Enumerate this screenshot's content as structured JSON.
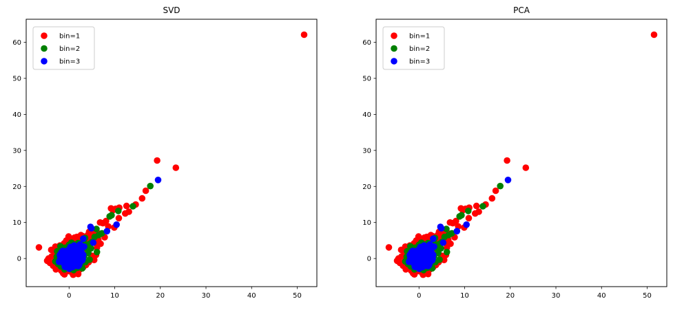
{
  "figure": {
    "background": "#ffffff",
    "legend_edge_color": "#cccccc",
    "legend_face_color": "#ffffff",
    "spine_color": "#000000",
    "text_color": "#000000"
  },
  "chart_data": {
    "type": "scatter",
    "grid": false,
    "identical_subplots": true,
    "subplots": [
      {
        "title": "SVD"
      },
      {
        "title": "PCA"
      }
    ],
    "xlabel": "",
    "ylabel": "",
    "xlim": [
      -9.4,
      54.3
    ],
    "ylim": [
      -7.8,
      66.4
    ],
    "xticks": [
      0,
      10,
      20,
      30,
      40,
      50
    ],
    "yticks": [
      0,
      10,
      20,
      30,
      40,
      50,
      60
    ],
    "legend": {
      "position": "upper left",
      "entries": [
        {
          "label": "bin=1",
          "color": "#ff0000"
        },
        {
          "label": "bin=2",
          "color": "#008000"
        },
        {
          "label": "bin=3",
          "color": "#0000ff"
        }
      ]
    },
    "series": [
      {
        "name": "bin=1",
        "color": "#ff0000",
        "points": [
          [
            51.5,
            62.1
          ],
          [
            -6.6,
            3.1
          ],
          [
            23.4,
            25.2
          ],
          [
            19.3,
            27.2
          ],
          [
            16.8,
            18.8
          ],
          [
            16.0,
            16.7
          ],
          [
            14.6,
            15.0
          ],
          [
            13.1,
            13.0
          ],
          [
            12.3,
            12.5
          ],
          [
            11.0,
            14.1
          ],
          [
            10.2,
            13.8
          ],
          [
            9.6,
            13.4
          ],
          [
            9.2,
            13.9
          ],
          [
            8.1,
            10.4
          ],
          [
            7.4,
            9.8
          ],
          [
            6.8,
            10.0
          ],
          [
            8.6,
            8.9
          ],
          [
            5.4,
            7.1
          ],
          [
            7.8,
            5.9
          ],
          [
            9.9,
            8.6
          ],
          [
            10.9,
            11.2
          ],
          [
            12.6,
            14.6
          ],
          [
            -4.2,
            -1.2
          ],
          [
            -3.8,
            0.6
          ],
          [
            -3.5,
            -2.0
          ],
          [
            -3.2,
            1.8
          ],
          [
            -2.9,
            -3.0
          ],
          [
            -2.6,
            2.8
          ],
          [
            -2.3,
            -0.6
          ],
          [
            -2.0,
            3.6
          ],
          [
            -1.7,
            -3.4
          ],
          [
            -1.4,
            1.0
          ],
          [
            -1.1,
            4.2
          ],
          [
            -0.8,
            -3.8
          ],
          [
            -0.5,
            2.2
          ],
          [
            -0.2,
            4.6
          ],
          [
            0.1,
            -3.5
          ],
          [
            0.4,
            3.0
          ],
          [
            0.7,
            -4.0
          ],
          [
            1.0,
            4.8
          ],
          [
            1.3,
            -3.0
          ],
          [
            1.6,
            4.1
          ],
          [
            1.9,
            -3.8
          ],
          [
            2.2,
            5.0
          ],
          [
            2.5,
            -2.9
          ],
          [
            2.8,
            4.4
          ],
          [
            3.1,
            -2.4
          ],
          [
            3.4,
            5.3
          ],
          [
            3.7,
            -1.8
          ],
          [
            4.0,
            4.9
          ],
          [
            4.3,
            -1.0
          ],
          [
            4.6,
            5.6
          ],
          [
            4.9,
            0.8
          ],
          [
            5.2,
            5.9
          ],
          [
            5.5,
            -0.4
          ],
          [
            5.8,
            4.3
          ],
          [
            6.1,
            3.0
          ],
          [
            6.4,
            5.2
          ],
          [
            -4.5,
            0.0
          ],
          [
            -3.9,
            2.4
          ],
          [
            -3.0,
            3.3
          ],
          [
            -2.2,
            -2.4
          ],
          [
            -1.3,
            -4.1
          ],
          [
            0.2,
            5.4
          ],
          [
            1.2,
            5.8
          ],
          [
            2.0,
            -4.3
          ],
          [
            3.0,
            6.2
          ],
          [
            4.1,
            6.5
          ],
          [
            5.0,
            6.8
          ],
          [
            6.6,
            6.9
          ],
          [
            -0.6,
            5.0
          ],
          [
            1.7,
            6.0
          ],
          [
            3.9,
            1.9
          ],
          [
            5.9,
            1.0
          ],
          [
            6.9,
            4.1
          ],
          [
            2.6,
            6.5
          ],
          [
            -3.4,
            -1.1
          ],
          [
            -1.0,
            -4.4
          ],
          [
            0.9,
            -4.5
          ],
          [
            -4.8,
            -0.6
          ],
          [
            -0.1,
            6.1
          ],
          [
            4.4,
            7.4
          ]
        ]
      },
      {
        "name": "bin=2",
        "color": "#008000",
        "points": [
          [
            17.8,
            20.1
          ],
          [
            14.0,
            14.5
          ],
          [
            10.8,
            13.2
          ],
          [
            9.3,
            12.0
          ],
          [
            8.9,
            11.7
          ],
          [
            6.0,
            8.2
          ],
          [
            6.5,
            6.5
          ],
          [
            5.6,
            6.0
          ],
          [
            3.5,
            5.7
          ],
          [
            5.0,
            4.6
          ],
          [
            4.1,
            2.5
          ],
          [
            6.1,
            1.8
          ],
          [
            7.2,
            7.0
          ],
          [
            -3.0,
            -0.8
          ],
          [
            -2.7,
            0.5
          ],
          [
            -2.4,
            -1.5
          ],
          [
            -2.1,
            1.4
          ],
          [
            -1.8,
            -2.2
          ],
          [
            -1.5,
            2.5
          ],
          [
            -1.2,
            -0.1
          ],
          [
            -0.9,
            3.0
          ],
          [
            -0.6,
            -2.6
          ],
          [
            -0.3,
            1.8
          ],
          [
            0.0,
            3.8
          ],
          [
            0.3,
            -2.9
          ],
          [
            0.6,
            2.7
          ],
          [
            0.9,
            -1.5
          ],
          [
            1.2,
            3.9
          ],
          [
            1.5,
            0.4
          ],
          [
            1.8,
            -2.6
          ],
          [
            2.1,
            3.4
          ],
          [
            2.4,
            1.1
          ],
          [
            2.7,
            -1.9
          ],
          [
            3.0,
            2.9
          ],
          [
            3.3,
            0.6
          ],
          [
            3.6,
            -1.0
          ],
          [
            3.9,
            3.7
          ],
          [
            4.2,
            1.5
          ],
          [
            4.5,
            -0.3
          ],
          [
            -2.6,
            2.0
          ],
          [
            -1.0,
            -3.0
          ],
          [
            2.0,
            4.3
          ],
          [
            3.2,
            4.5
          ],
          [
            4.4,
            4.0
          ],
          [
            0.5,
            4.4
          ],
          [
            -1.9,
            3.4
          ],
          [
            2.9,
            -2.7
          ],
          [
            4.8,
            2.8
          ],
          [
            1.0,
            -3.2
          ]
        ]
      },
      {
        "name": "bin=3",
        "color": "#0000ff",
        "points": [
          [
            19.5,
            21.8
          ],
          [
            10.4,
            9.4
          ],
          [
            8.3,
            7.6
          ],
          [
            4.9,
            8.4
          ],
          [
            4.7,
            8.8
          ],
          [
            3.1,
            5.5
          ],
          [
            5.3,
            4.4
          ],
          [
            1.5,
            2.7
          ],
          [
            2.4,
            3.9
          ],
          [
            3.3,
            3.3
          ],
          [
            -1.9,
            0.2
          ],
          [
            -1.6,
            -0.6
          ],
          [
            -1.5,
            0.9
          ],
          [
            -1.2,
            -1.3
          ],
          [
            -1.1,
            0.1
          ],
          [
            -1.0,
            1.2
          ],
          [
            -0.9,
            -0.4
          ],
          [
            -0.8,
            2.0
          ],
          [
            -0.7,
            0.6
          ],
          [
            -0.6,
            -1.7
          ],
          [
            -0.5,
            1.5
          ],
          [
            -0.4,
            -0.2
          ],
          [
            -0.3,
            0.9
          ],
          [
            -0.2,
            -1.0
          ],
          [
            -0.1,
            2.4
          ],
          [
            0.0,
            0.3
          ],
          [
            0.1,
            -1.9
          ],
          [
            0.2,
            1.1
          ],
          [
            0.3,
            -0.5
          ],
          [
            0.4,
            2.0
          ],
          [
            0.5,
            0.0
          ],
          [
            0.6,
            -1.2
          ],
          [
            0.7,
            1.6
          ],
          [
            0.8,
            0.5
          ],
          [
            0.9,
            -0.8
          ],
          [
            1.0,
            2.6
          ],
          [
            1.1,
            0.9
          ],
          [
            1.2,
            -1.6
          ],
          [
            1.3,
            1.9
          ],
          [
            1.4,
            0.2
          ],
          [
            1.5,
            -0.9
          ],
          [
            1.6,
            2.9
          ],
          [
            1.7,
            1.2
          ],
          [
            1.8,
            -0.3
          ],
          [
            1.9,
            0.7
          ],
          [
            2.0,
            -2.1
          ],
          [
            2.1,
            1.5
          ],
          [
            2.2,
            0.1
          ],
          [
            2.3,
            2.2
          ],
          [
            2.4,
            -1.1
          ],
          [
            2.5,
            0.8
          ],
          [
            2.7,
            1.8
          ],
          [
            2.9,
            -0.5
          ],
          [
            3.1,
            1.0
          ],
          [
            -2.2,
            -0.9
          ],
          [
            -2.0,
            1.0
          ],
          [
            -1.4,
            2.1
          ],
          [
            -0.9,
            -2.3
          ],
          [
            0.3,
            3.2
          ],
          [
            1.1,
            3.6
          ],
          [
            0.0,
            -2.8
          ],
          [
            1.9,
            3.1
          ],
          [
            2.6,
            2.6
          ],
          [
            -1.7,
            1.6
          ],
          [
            0.7,
            -2.4
          ],
          [
            1.4,
            -2.0
          ],
          [
            2.2,
            -1.8
          ],
          [
            -0.4,
            -2.0
          ],
          [
            3.0,
            0.0
          ],
          [
            2.8,
            3.4
          ]
        ]
      }
    ]
  }
}
